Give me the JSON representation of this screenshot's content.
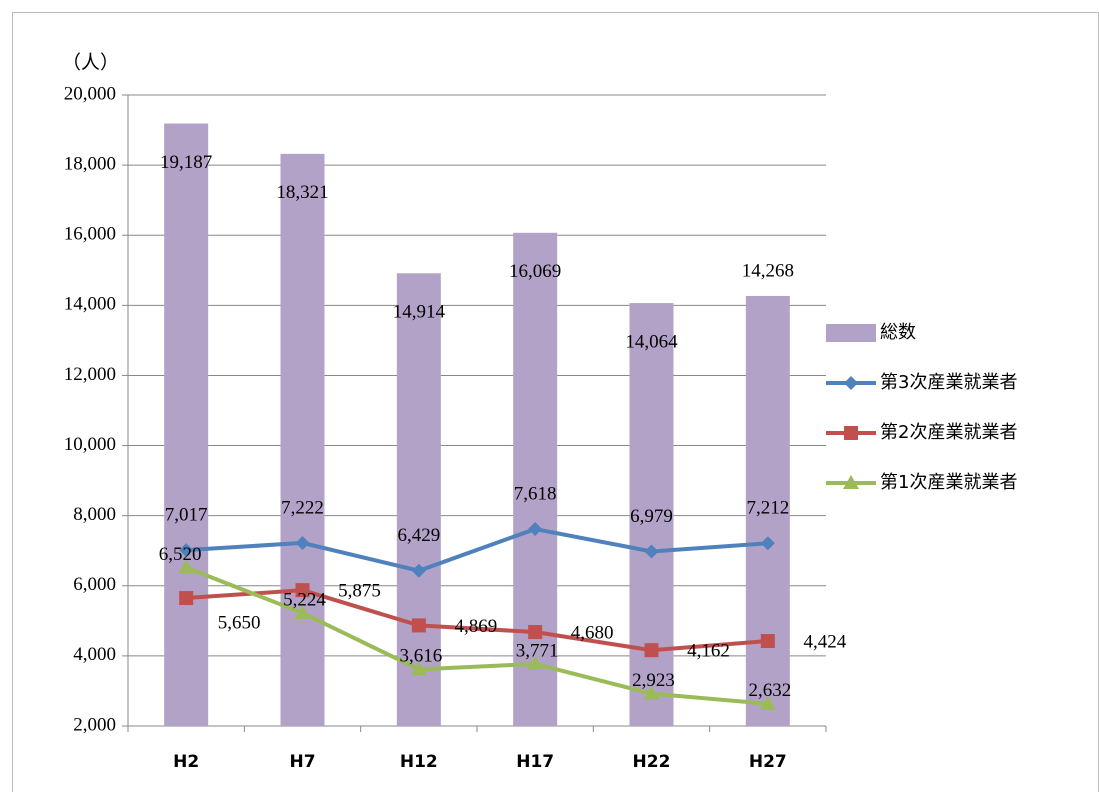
{
  "chart_data": {
    "type": "combo",
    "y_label": "（人）",
    "categories": [
      "H2",
      "H7",
      "H12",
      "H17",
      "H22",
      "H27"
    ],
    "series": [
      {
        "name": "総数",
        "type": "bar",
        "color": "#b3a2c7",
        "values": [
          19187,
          18321,
          14914,
          16069,
          14064,
          14268
        ],
        "value_labels": [
          "19,187",
          "18,321",
          "14,914",
          "16,069",
          "14,064",
          "14,268"
        ]
      },
      {
        "name": "第3次産業就業者",
        "type": "line",
        "marker": "diamond",
        "color": "#4f81bd",
        "values": [
          7017,
          7222,
          6429,
          7618,
          6979,
          7212
        ],
        "value_labels": [
          "7,017",
          "7,222",
          "6,429",
          "7,618",
          "6,979",
          "7,212"
        ]
      },
      {
        "name": "第2次産業就業者",
        "type": "line",
        "marker": "square",
        "color": "#c0504d",
        "values": [
          5650,
          5875,
          4869,
          4680,
          4162,
          4424
        ],
        "value_labels": [
          "5,650",
          "5,875",
          "4,869",
          "4,680",
          "4,162",
          "4,424"
        ]
      },
      {
        "name": "第1次産業就業者",
        "type": "line",
        "marker": "triangle",
        "color": "#9bbb59",
        "values": [
          6520,
          5224,
          3616,
          3771,
          2923,
          2632
        ],
        "value_labels": [
          "6,520",
          "5,224",
          "3,616",
          "3,771",
          "2,923",
          "2,632"
        ]
      }
    ],
    "ylim": [
      2000,
      20000
    ],
    "yticks": [
      {
        "value": 2000,
        "label": "2,000"
      },
      {
        "value": 4000,
        "label": "4,000"
      },
      {
        "value": 6000,
        "label": "6,000"
      },
      {
        "value": 8000,
        "label": "8,000"
      },
      {
        "value": 10000,
        "label": "10,000"
      },
      {
        "value": 12000,
        "label": "12,000"
      },
      {
        "value": 14000,
        "label": "14,000"
      },
      {
        "value": 16000,
        "label": "16,000"
      },
      {
        "value": 18000,
        "label": "18,000"
      },
      {
        "value": 20000,
        "label": "20,000"
      }
    ],
    "grid": true,
    "legend": "right"
  }
}
